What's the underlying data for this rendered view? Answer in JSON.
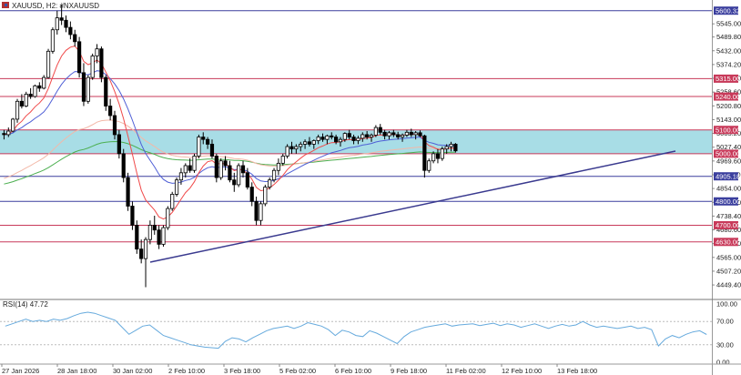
{
  "header": {
    "symbol_label": "XAUUSD, H2:  #NXAUUSD",
    "icon": "symbol-flag-icon"
  },
  "rsi": {
    "label": "RSI(14) 47.72"
  },
  "colors": {
    "zone": "#a8dde6",
    "level_line": "#c83a5a",
    "support_line": "#4b5bb5",
    "blue_level": "#3b3f9e",
    "trendline": "#3a3a8f",
    "ma_fast": "#f04a4a",
    "ma_mid": "#4f5fd6",
    "ma_slow_light": "#f3b8a8",
    "ma_slow": "#4caf50",
    "rsi_line": "#66aadd",
    "candle": "#000000"
  },
  "chart_data": {
    "type": "candlestick",
    "timeframe": "H2",
    "y_axis": {
      "range": [
        4400,
        5645
      ],
      "ticks": [
        "5545.00",
        "5489.80",
        "5432.00",
        "5374.20",
        "5316.40",
        "5258.60",
        "5200.80",
        "5143.00",
        "5085.20",
        "5027.40",
        "4969.60",
        "4911.80",
        "4854.00",
        "4796.20",
        "4738.40",
        "4680.60",
        "4622.80",
        "4565.00",
        "4507.20",
        "4449.40"
      ],
      "labels": {
        "5545.00": "5545.00",
        "5489.80": "5489.80",
        "5432.00": "5432.00",
        "5374.20": "5374.20",
        "5316.40": "5316.40",
        "5258.60": "5258.60",
        "5200.80": "5200.80",
        "5143.00": "5143.00",
        "5085.20": "5085.20",
        "5027.40": "5027.40",
        "4969.60": "4969.60",
        "4911.80": "4911.80",
        "4854.00": "4854.00",
        "4796.20": "4796.20",
        "4738.40": "4738.40",
        "4680.60": "4680.60",
        "4622.80": "4622.80",
        "4565.00": "4565.00",
        "4507.20": "4507.20",
        "4449.40": "4449.40"
      }
    },
    "x_axis": {
      "ticks": [
        "27 Jan 2026",
        "28 Jan 18:00",
        "30 Jan 02:00",
        "2 Feb 10:00",
        "3 Feb 18:00",
        "5 Feb 02:00",
        "6 Feb 10:00",
        "9 Feb 18:00",
        "11 Feb 02:00",
        "12 Feb 10:00",
        "13 Feb 18:00"
      ]
    },
    "horizontal_levels": [
      {
        "value": 5600.32,
        "label": "5600.32",
        "color": "#3b3f9e"
      },
      {
        "value": 5315.0,
        "label": "5315.00",
        "color": "#c83a5a"
      },
      {
        "value": 5240.0,
        "label": "5240.00",
        "color": "#c83a5a"
      },
      {
        "value": 5100.0,
        "label": "5100.00",
        "color": "#c83a5a"
      },
      {
        "value": 5000.0,
        "label": "5000.00",
        "color": "#c83a5a"
      },
      {
        "value": 4905.18,
        "label": "4905.18",
        "color": "#3b3f9e"
      },
      {
        "value": 4800.0,
        "label": "4800.00",
        "color": "#3b3f9e"
      },
      {
        "value": 4700.0,
        "label": "4700.00",
        "color": "#c83a5a"
      },
      {
        "value": 4630.0,
        "label": "4630.00",
        "color": "#c83a5a"
      }
    ],
    "resistance_zone": {
      "from": 5000,
      "to": 5100
    },
    "trendline": {
      "start": {
        "bar": 0,
        "price": 4545
      },
      "end": {
        "bar": 148,
        "price": 5011
      }
    },
    "bar_count": 160,
    "candles": [
      [
        5085,
        5100,
        5060,
        5080
      ],
      [
        5080,
        5110,
        5070,
        5095
      ],
      [
        5095,
        5150,
        5090,
        5145
      ],
      [
        5145,
        5230,
        5130,
        5220
      ],
      [
        5220,
        5250,
        5190,
        5200
      ],
      [
        5200,
        5260,
        5195,
        5250
      ],
      [
        5250,
        5275,
        5230,
        5240
      ],
      [
        5240,
        5290,
        5235,
        5285
      ],
      [
        5285,
        5300,
        5260,
        5275
      ],
      [
        5275,
        5330,
        5270,
        5320
      ],
      [
        5320,
        5440,
        5315,
        5430
      ],
      [
        5430,
        5530,
        5420,
        5520
      ],
      [
        5520,
        5600,
        5500,
        5570
      ],
      [
        5570,
        5625,
        5540,
        5560
      ],
      [
        5560,
        5580,
        5510,
        5530
      ],
      [
        5530,
        5555,
        5480,
        5500
      ],
      [
        5500,
        5520,
        5450,
        5470
      ],
      [
        5470,
        5490,
        5320,
        5340
      ],
      [
        5340,
        5380,
        5200,
        5220
      ],
      [
        5220,
        5330,
        5210,
        5320
      ],
      [
        5320,
        5420,
        5310,
        5410
      ],
      [
        5410,
        5460,
        5380,
        5440
      ],
      [
        5440,
        5450,
        5300,
        5320
      ],
      [
        5320,
        5330,
        5180,
        5200
      ],
      [
        5200,
        5230,
        5140,
        5160
      ],
      [
        5160,
        5180,
        5060,
        5080
      ],
      [
        5080,
        5100,
        4980,
        5000
      ],
      [
        5000,
        5020,
        4880,
        4900
      ],
      [
        4900,
        4920,
        4760,
        4780
      ],
      [
        4780,
        4800,
        4680,
        4700
      ],
      [
        4700,
        4720,
        4580,
        4600
      ],
      [
        4600,
        4640,
        4540,
        4560
      ],
      [
        4560,
        4650,
        4440,
        4640
      ],
      [
        4640,
        4720,
        4620,
        4700
      ],
      [
        4700,
        4740,
        4660,
        4680
      ],
      [
        4680,
        4700,
        4600,
        4620
      ],
      [
        4620,
        4700,
        4610,
        4690
      ],
      [
        4690,
        4780,
        4680,
        4770
      ],
      [
        4770,
        4840,
        4760,
        4830
      ],
      [
        4830,
        4900,
        4820,
        4890
      ],
      [
        4890,
        4940,
        4870,
        4920
      ],
      [
        4920,
        4960,
        4900,
        4950
      ],
      [
        4950,
        4980,
        4920,
        4930
      ],
      [
        4930,
        5000,
        4920,
        4990
      ],
      [
        4990,
        5080,
        4980,
        5070
      ],
      [
        5070,
        5090,
        5040,
        5060
      ],
      [
        5060,
        5070,
        5020,
        5040
      ],
      [
        5040,
        5060,
        4980,
        4990
      ],
      [
        4990,
        5000,
        4880,
        4900
      ],
      [
        4900,
        4980,
        4890,
        4970
      ],
      [
        4970,
        4990,
        4930,
        4950
      ],
      [
        4950,
        4970,
        4880,
        4890
      ],
      [
        4890,
        4920,
        4840,
        4870
      ],
      [
        4870,
        4960,
        4860,
        4950
      ],
      [
        4950,
        4970,
        4900,
        4920
      ],
      [
        4920,
        4940,
        4850,
        4860
      ],
      [
        4860,
        4880,
        4780,
        4800
      ],
      [
        4800,
        4820,
        4700,
        4720
      ],
      [
        4720,
        4800,
        4700,
        4790
      ],
      [
        4790,
        4870,
        4780,
        4860
      ],
      [
        4860,
        4900,
        4850,
        4890
      ],
      [
        4890,
        4940,
        4880,
        4930
      ],
      [
        4930,
        4980,
        4910,
        4960
      ],
      [
        4960,
        5000,
        4950,
        4990
      ],
      [
        4990,
        5040,
        4980,
        5030
      ],
      [
        5030,
        5050,
        5000,
        5020
      ],
      [
        5020,
        5040,
        5000,
        5030
      ],
      [
        5030,
        5050,
        5010,
        5040
      ],
      [
        5040,
        5060,
        5020,
        5050
      ],
      [
        5050,
        5070,
        5030,
        5040
      ],
      [
        5040,
        5060,
        5020,
        5055
      ],
      [
        5055,
        5080,
        5040,
        5070
      ],
      [
        5070,
        5085,
        5050,
        5060
      ],
      [
        5060,
        5080,
        5040,
        5075
      ],
      [
        5075,
        5090,
        5060,
        5070
      ],
      [
        5070,
        5080,
        5040,
        5050
      ],
      [
        5050,
        5070,
        5030,
        5060
      ],
      [
        5060,
        5090,
        5050,
        5085
      ],
      [
        5085,
        5100,
        5060,
        5070
      ],
      [
        5070,
        5080,
        5040,
        5055
      ],
      [
        5055,
        5075,
        5040,
        5065
      ],
      [
        5065,
        5090,
        5050,
        5080
      ],
      [
        5080,
        5095,
        5060,
        5070
      ],
      [
        5070,
        5085,
        5050,
        5078
      ],
      [
        5078,
        5120,
        5070,
        5110
      ],
      [
        5110,
        5125,
        5080,
        5090
      ],
      [
        5090,
        5100,
        5060,
        5075
      ],
      [
        5075,
        5095,
        5060,
        5088
      ],
      [
        5088,
        5100,
        5070,
        5080
      ],
      [
        5080,
        5092,
        5060,
        5070
      ],
      [
        5070,
        5085,
        5050,
        5078
      ],
      [
        5078,
        5100,
        5070,
        5090
      ],
      [
        5090,
        5105,
        5070,
        5080
      ],
      [
        5080,
        5095,
        5060,
        5088
      ],
      [
        5088,
        5098,
        5070,
        5075
      ],
      [
        5075,
        5080,
        4900,
        4930
      ],
      [
        4930,
        4980,
        4920,
        4970
      ],
      [
        4970,
        5010,
        4960,
        5000
      ],
      [
        5000,
        5020,
        4960,
        4980
      ],
      [
        4980,
        5030,
        4970,
        5020
      ],
      [
        5020,
        5040,
        5000,
        5030
      ],
      [
        5030,
        5050,
        5010,
        5040
      ],
      [
        5040,
        5045,
        5005,
        5012
      ]
    ],
    "rsi": {
      "value": 47.72,
      "range": [
        0,
        100
      ],
      "levels": [
        70,
        30
      ],
      "ticks": [
        "100.00",
        "70.00",
        "30.00",
        "0.00"
      ],
      "values": [
        62,
        66,
        70,
        74,
        70,
        72,
        70,
        74,
        72,
        75,
        80,
        84,
        86,
        84,
        80,
        76,
        72,
        60,
        48,
        55,
        62,
        64,
        55,
        46,
        42,
        38,
        34,
        30,
        28,
        26,
        25,
        24,
        36,
        42,
        40,
        35,
        42,
        48,
        54,
        58,
        60,
        62,
        58,
        62,
        68,
        65,
        62,
        56,
        46,
        55,
        52,
        46,
        44,
        54,
        50,
        44,
        38,
        32,
        44,
        52,
        56,
        60,
        62,
        64,
        66,
        62,
        64,
        65,
        66,
        63,
        65,
        67,
        63,
        66,
        64,
        60,
        63,
        66,
        62,
        58,
        62,
        65,
        62,
        64,
        70,
        64,
        60,
        62,
        60,
        58,
        60,
        62,
        58,
        60,
        56,
        28,
        40,
        46,
        42,
        48,
        52,
        54,
        47.72
      ]
    }
  }
}
